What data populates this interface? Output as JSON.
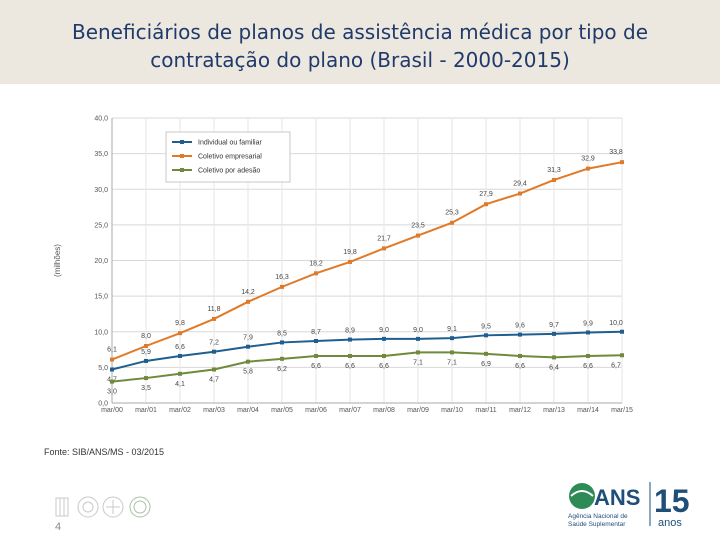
{
  "header": {
    "title_line1": "Beneficiários de planos de assistência médica por tipo de",
    "title_line2": "contratação do plano (Brasil - 2000-2015)"
  },
  "footer": {
    "source": "Fonte: SIB/ANS/MS - 03/2015",
    "page_number": "4"
  },
  "logo": {
    "name": "ANS",
    "subtitle_line1": "Agência Nacional de",
    "subtitle_line2": "Saúde Suplementar",
    "anniversary_number": "15",
    "anniversary_word": "anos"
  },
  "chart_data": {
    "type": "line",
    "title": "",
    "ylabel": "(milhões)",
    "xlabel": "",
    "ylim": [
      0,
      40
    ],
    "yticks": [
      "0,0",
      "5,0",
      "10,0",
      "15,0",
      "20,0",
      "25,0",
      "30,0",
      "35,0",
      "40,0"
    ],
    "categories": [
      "mar/00",
      "mar/01",
      "mar/02",
      "mar/03",
      "mar/04",
      "mar/05",
      "mar/06",
      "mar/07",
      "mar/08",
      "mar/09",
      "mar/10",
      "mar/11",
      "mar/12",
      "mar/13",
      "mar/14",
      "mar/15"
    ],
    "legend_position": "top-left",
    "series": [
      {
        "name": "Individual ou familiar",
        "color": "#1f5f8f",
        "values": [
          4.7,
          5.9,
          6.6,
          7.2,
          7.9,
          8.5,
          8.7,
          8.9,
          9.0,
          9.0,
          9.1,
          9.5,
          9.6,
          9.7,
          9.9,
          10.0
        ],
        "labels": [
          "4,7",
          "5,9",
          "6,6",
          "7,2",
          "7,9",
          "8,5",
          "8,7",
          "8,9",
          "9,0",
          "9,0",
          "9,1",
          "9,5",
          "9,6",
          "9,7",
          "9,9",
          "10,0"
        ]
      },
      {
        "name": "Coletivo empresarial",
        "color": "#e07a28",
        "values": [
          6.1,
          8.0,
          9.8,
          11.8,
          14.2,
          16.3,
          18.2,
          19.8,
          21.7,
          23.5,
          25.3,
          27.9,
          29.4,
          31.3,
          32.9,
          33.8
        ],
        "labels": [
          "6,1",
          "8,0",
          "9,8",
          "11,8",
          "14,2",
          "16,3",
          "18,2",
          "19,8",
          "21,7",
          "23,5",
          "25,3",
          "27,9",
          "29,4",
          "31,3",
          "32,9",
          "33,8"
        ]
      },
      {
        "name": "Coletivo por adesão",
        "color": "#6e8a3a",
        "values": [
          3.0,
          3.5,
          4.1,
          4.7,
          5.8,
          6.2,
          6.6,
          6.6,
          6.6,
          7.1,
          7.1,
          6.9,
          6.6,
          6.4,
          6.6,
          6.7
        ],
        "labels": [
          "3,0",
          "3,5",
          "4,1",
          "4,7",
          "5,8",
          "6,2",
          "6,6",
          "6,6",
          "6,6",
          "7,1",
          "7,1",
          "6,9",
          "6,6",
          "6,4",
          "6,6",
          "6,7"
        ]
      }
    ]
  }
}
